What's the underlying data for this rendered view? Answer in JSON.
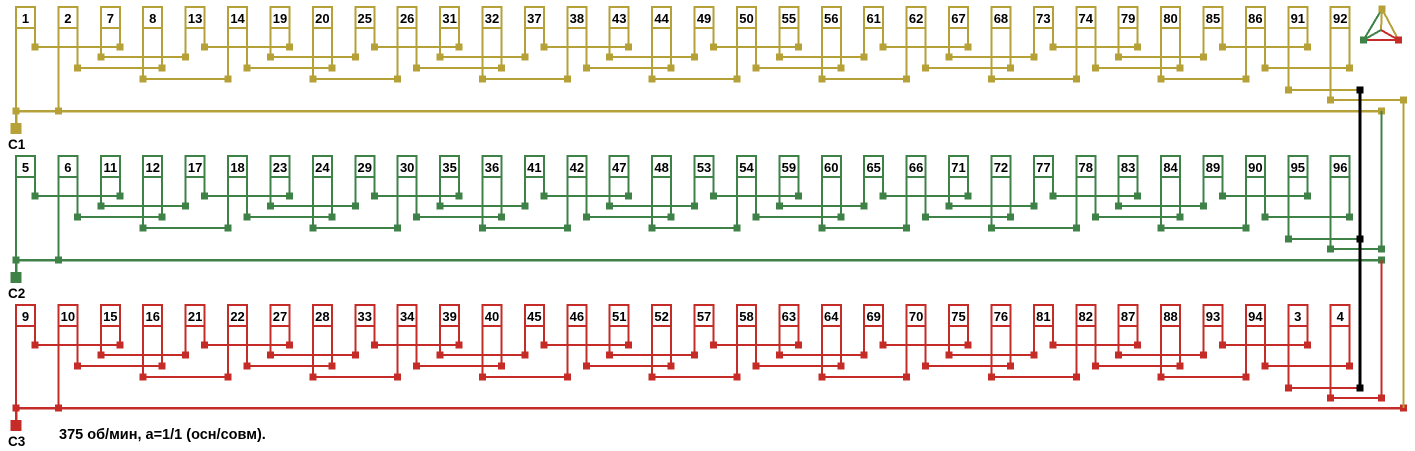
{
  "caption": "375 об/мин, a=1/1 (осн/совм).",
  "colors": {
    "phase_a_yellow": "#B5A138",
    "phase_b_green": "#3F8248",
    "phase_c_red": "#C52C28",
    "neutral_black": "#000000",
    "box_fill": "#FFFFFF",
    "text": "#000000"
  },
  "rows": [
    {
      "terminal": "C1",
      "color": "#B5A138",
      "coils": [
        1,
        2,
        7,
        8,
        13,
        14,
        19,
        20,
        25,
        26,
        31,
        32,
        37,
        38,
        43,
        44,
        49,
        50,
        55,
        56,
        61,
        62,
        67,
        68,
        73,
        74,
        79,
        80,
        85,
        86,
        91,
        92
      ]
    },
    {
      "terminal": "C2",
      "color": "#3F8248",
      "coils": [
        5,
        6,
        11,
        12,
        17,
        18,
        23,
        24,
        29,
        30,
        35,
        36,
        41,
        42,
        47,
        48,
        53,
        54,
        59,
        60,
        65,
        66,
        71,
        72,
        77,
        78,
        83,
        84,
        89,
        90,
        95,
        96
      ]
    },
    {
      "terminal": "C3",
      "color": "#C52C28",
      "coils": [
        9,
        10,
        15,
        16,
        21,
        22,
        27,
        28,
        33,
        34,
        39,
        40,
        45,
        46,
        51,
        52,
        57,
        58,
        63,
        64,
        69,
        70,
        75,
        76,
        81,
        82,
        87,
        88,
        93,
        94,
        3,
        4
      ]
    }
  ],
  "topology": {
    "coils_per_row": 32,
    "right_lead_pairs_depth1": [
      [
        0,
        2
      ],
      [
        4,
        6
      ],
      [
        8,
        10
      ],
      [
        12,
        14
      ],
      [
        16,
        18
      ],
      [
        20,
        22
      ],
      [
        24,
        26
      ],
      [
        28,
        30
      ]
    ],
    "left_lead_pairs_depth2": [
      [
        2,
        4
      ],
      [
        6,
        8
      ],
      [
        10,
        12
      ],
      [
        14,
        16
      ],
      [
        18,
        20
      ],
      [
        22,
        24
      ],
      [
        26,
        28
      ]
    ],
    "right_lead_pairs_depth3": [
      [
        1,
        3
      ],
      [
        5,
        7
      ],
      [
        9,
        11
      ],
      [
        13,
        15
      ],
      [
        17,
        19
      ],
      [
        21,
        23
      ],
      [
        25,
        27
      ],
      [
        29,
        31
      ]
    ],
    "left_lead_pairs_depth4": [
      [
        3,
        5
      ],
      [
        7,
        9
      ],
      [
        11,
        13
      ],
      [
        15,
        17
      ],
      [
        19,
        21
      ],
      [
        23,
        25
      ],
      [
        27,
        29
      ]
    ],
    "bus_joins": "terminal bus connects left leads of coil index 0 and 1 of its row",
    "star_point": "black vertical line joins left lead of coil index 30 of all three rows",
    "delta_links": [
      "row1 bus end connects down to row2 coil index 31 left lead",
      "row2 bus end connects down to row3 coil index 31 left lead",
      "row3 bus end connects up to row1 coil index 31 left lead"
    ]
  },
  "icon": {
    "name": "star-delta-connection",
    "vertex_colors": [
      "#B5A138",
      "#3F8248",
      "#C52C28"
    ]
  }
}
